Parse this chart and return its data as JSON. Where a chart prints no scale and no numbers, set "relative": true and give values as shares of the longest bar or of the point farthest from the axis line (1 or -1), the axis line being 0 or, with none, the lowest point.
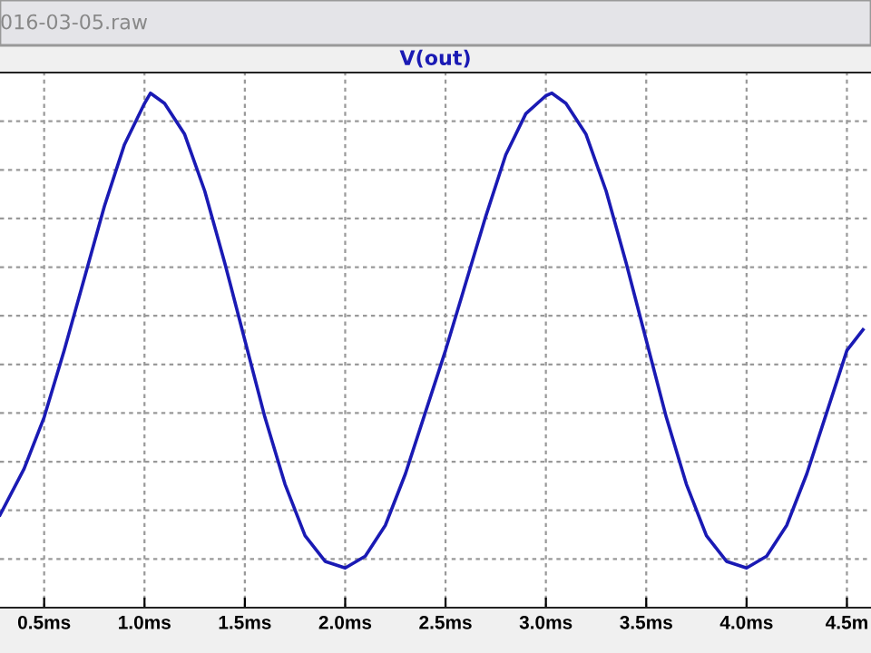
{
  "chart_data": {
    "type": "line",
    "title": "V(out)",
    "relative": true,
    "grid": true,
    "line_style": "solid",
    "annotations": [
      "016-03-05.raw"
    ],
    "xlim": [
      0.28,
      4.62
    ],
    "xticks": [
      {
        "value": 0.5,
        "label": "0.5ms"
      },
      {
        "value": 1.0,
        "label": "1.0ms"
      },
      {
        "value": 1.5,
        "label": "1.5ms"
      },
      {
        "value": 2.0,
        "label": "2.0ms"
      },
      {
        "value": 2.5,
        "label": "2.5ms"
      },
      {
        "value": 3.0,
        "label": "3.0ms"
      },
      {
        "value": 3.5,
        "label": "3.5ms"
      },
      {
        "value": 4.0,
        "label": "4.0ms"
      },
      {
        "value": 4.5,
        "label": "4.5m"
      }
    ],
    "x": [
      0.28,
      0.4,
      0.5,
      0.6,
      0.7,
      0.8,
      0.9,
      1.0,
      1.03,
      1.1,
      1.2,
      1.3,
      1.4,
      1.5,
      1.6,
      1.7,
      1.8,
      1.9,
      2.0,
      2.1,
      2.2,
      2.3,
      2.4,
      2.5,
      2.6,
      2.7,
      2.8,
      2.9,
      3.0,
      3.03,
      3.1,
      3.2,
      3.3,
      3.4,
      3.5,
      3.6,
      3.7,
      3.8,
      3.9,
      4.0,
      4.1,
      4.2,
      4.3,
      4.4,
      4.5,
      4.58
    ],
    "series": [
      {
        "color": "#1a1ab4",
        "values": [
          0.18,
          0.27,
          0.37,
          0.5,
          0.64,
          0.78,
          0.9,
          0.98,
          1.0,
          0.98,
          0.92,
          0.81,
          0.67,
          0.52,
          0.37,
          0.24,
          0.14,
          0.09,
          0.077,
          0.1,
          0.16,
          0.26,
          0.38,
          0.5,
          0.63,
          0.76,
          0.88,
          0.96,
          0.995,
          1.0,
          0.98,
          0.92,
          0.81,
          0.67,
          0.52,
          0.37,
          0.24,
          0.14,
          0.09,
          0.077,
          0.1,
          0.16,
          0.26,
          0.38,
          0.5,
          0.54
        ]
      }
    ]
  }
}
